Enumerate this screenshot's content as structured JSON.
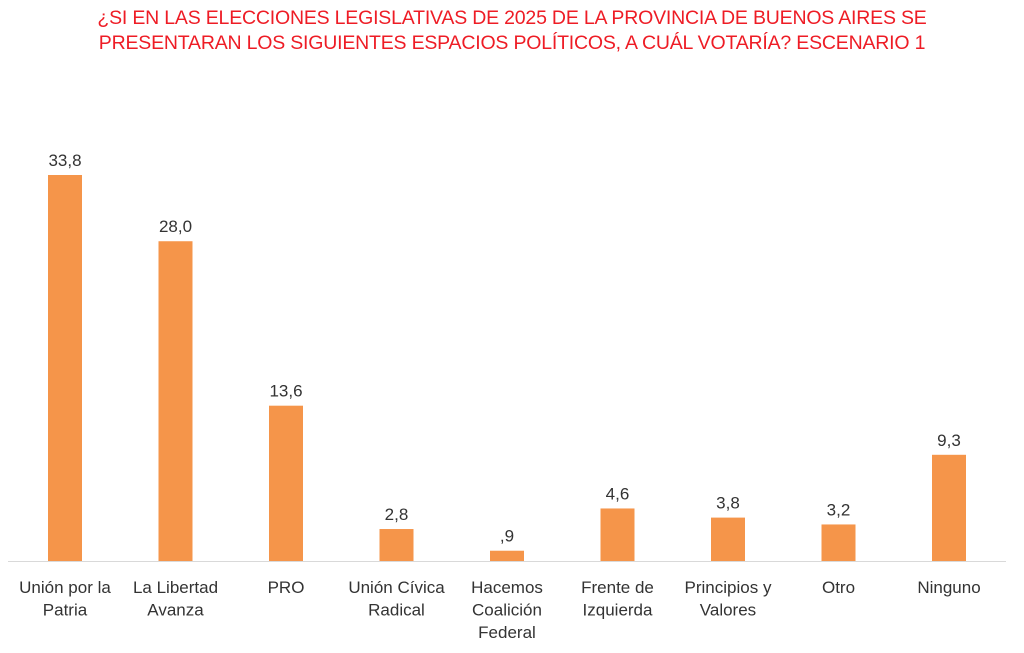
{
  "title_lines": [
    "¿SI EN LAS ELECCIONES LEGISLATIVAS DE 2025 DE LA PROVINCIA DE BUENOS AIRES SE",
    "PRESENTARAN LOS SIGUIENTES ESPACIOS POLÍTICOS, A CUÁL VOTARÍA? ESCENARIO 1"
  ],
  "colors": {
    "title": "#ee1c25",
    "bar": "#f5954a",
    "axis": "#d9d9d9",
    "text": "#333333"
  },
  "chart_data": {
    "type": "bar",
    "title": "¿SI EN LAS ELECCIONES LEGISLATIVAS DE 2025 DE LA PROVINCIA DE BUENOS AIRES SE PRESENTARAN LOS SIGUIENTES ESPACIOS POLÍTICOS, A CUÁL VOTARÍA? ESCENARIO 1",
    "categories": [
      [
        "Unión por la",
        "Patria"
      ],
      [
        "La Libertad",
        "Avanza"
      ],
      [
        "PRO"
      ],
      [
        "Unión Cívica",
        "Radical"
      ],
      [
        "Hacemos",
        "Coalición",
        "Federal"
      ],
      [
        "Frente de",
        "Izquierda"
      ],
      [
        "Principios y",
        "Valores"
      ],
      [
        "Otro"
      ],
      [
        "Ninguno"
      ]
    ],
    "values": [
      33.8,
      28.0,
      13.6,
      2.8,
      0.9,
      4.6,
      3.8,
      3.2,
      9.3
    ],
    "value_labels": [
      "33,8",
      "28,0",
      "13,6",
      "2,8",
      ",9",
      "4,6",
      "3,8",
      "3,2",
      "9,3"
    ],
    "xlabel": "",
    "ylabel": "",
    "ylim": [
      0,
      34
    ],
    "grid": false,
    "legend": "none"
  }
}
